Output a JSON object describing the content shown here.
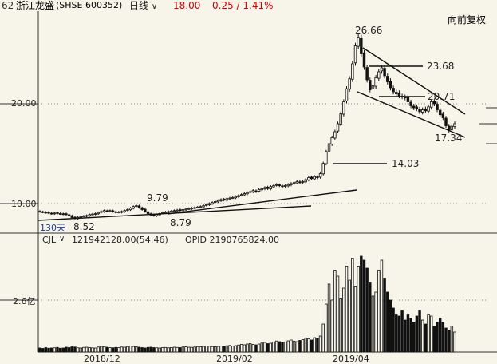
{
  "header": {
    "prefix": "62",
    "stock_name": "浙江龙盛",
    "stock_code": "(SHSE 600352)",
    "period_label": "日线",
    "price": "18.00",
    "change": "0.25 / 1.41%",
    "adjust_label": "向前复权",
    "price_color": "#d00000"
  },
  "price_axis": {
    "tick_20": "20.00",
    "tick_10": "10.00"
  },
  "annotations": {
    "high_26": "26.66",
    "level_23": "23.68",
    "level_20": "20.71",
    "low_17": "17.34",
    "level_14": "14.03",
    "mark_979": "9.79",
    "mark_879": "8.79",
    "mark_852": "8.52",
    "days_label": "130天"
  },
  "volume_panel": {
    "indicator": "CJL",
    "indicator_value": "121942128.00(54:46)",
    "opid": "OPID 2190765824.00",
    "axis_tick": "2.6亿"
  },
  "date_axis": {
    "d1": "2018/12",
    "d2": "2019/02",
    "d3": "2019/04"
  },
  "chart_data": {
    "type": "candlestick",
    "ylim": [
      8.0,
      28.0
    ],
    "price_labels": [
      26.66,
      23.68,
      20.71,
      17.34,
      14.03,
      9.79,
      8.79,
      8.52
    ],
    "closes": [
      9.2,
      9.15,
      9.1,
      9.05,
      9.0,
      9.05,
      9.02,
      9.0,
      8.95,
      8.9,
      8.8,
      8.6,
      8.52,
      8.62,
      8.7,
      8.75,
      8.8,
      8.9,
      8.95,
      9.0,
      9.1,
      9.2,
      9.3,
      9.25,
      9.3,
      9.2,
      9.1,
      9.15,
      9.2,
      9.3,
      9.4,
      9.55,
      9.7,
      9.79,
      9.6,
      9.4,
      9.2,
      9.0,
      8.85,
      8.79,
      8.9,
      9.0,
      9.1,
      9.15,
      9.2,
      9.25,
      9.3,
      9.35,
      9.3,
      9.4,
      9.45,
      9.5,
      9.55,
      9.6,
      9.65,
      9.7,
      9.8,
      9.9,
      10.0,
      10.1,
      10.2,
      10.3,
      10.4,
      10.35,
      10.5,
      10.55,
      10.6,
      10.7,
      10.8,
      10.9,
      11.0,
      11.1,
      11.2,
      11.3,
      11.2,
      11.4,
      11.5,
      11.6,
      11.5,
      11.7,
      11.8,
      11.9,
      11.8,
      11.7,
      11.8,
      11.9,
      12.0,
      12.1,
      12.2,
      12.1,
      12.2,
      12.4,
      12.6,
      12.5,
      12.7,
      12.6,
      13.0,
      14.03,
      15.2,
      16.0,
      16.6,
      17.2,
      18.0,
      19.0,
      20.2,
      21.5,
      22.5,
      24.0,
      25.8,
      26.66,
      25.0,
      23.68,
      22.4,
      21.4,
      21.8,
      22.6,
      23.2,
      23.6,
      22.8,
      22.2,
      21.6,
      21.2,
      21.0,
      20.8,
      20.71,
      20.6,
      20.2,
      19.8,
      19.6,
      19.5,
      19.2,
      19.4,
      19.3,
      19.7,
      20.2,
      20.0,
      19.4,
      18.9,
      18.6,
      17.8,
      17.34,
      17.75,
      18.0
    ],
    "volumes": [
      0.2,
      0.18,
      0.22,
      0.19,
      0.2,
      0.21,
      0.23,
      0.19,
      0.2,
      0.24,
      0.22,
      0.26,
      0.25,
      0.21,
      0.2,
      0.23,
      0.24,
      0.22,
      0.21,
      0.2,
      0.25,
      0.28,
      0.26,
      0.24,
      0.22,
      0.21,
      0.23,
      0.22,
      0.25,
      0.24,
      0.27,
      0.3,
      0.28,
      0.26,
      0.24,
      0.22,
      0.2,
      0.23,
      0.24,
      0.22,
      0.21,
      0.2,
      0.22,
      0.23,
      0.21,
      0.22,
      0.24,
      0.23,
      0.22,
      0.25,
      0.26,
      0.24,
      0.23,
      0.25,
      0.27,
      0.26,
      0.28,
      0.3,
      0.29,
      0.27,
      0.26,
      0.28,
      0.3,
      0.29,
      0.31,
      0.33,
      0.3,
      0.32,
      0.35,
      0.38,
      0.36,
      0.4,
      0.42,
      0.38,
      0.36,
      0.4,
      0.45,
      0.48,
      0.42,
      0.44,
      0.5,
      0.55,
      0.52,
      0.48,
      0.5,
      0.56,
      0.6,
      0.54,
      0.52,
      0.58,
      0.62,
      0.7,
      0.66,
      0.6,
      0.72,
      0.68,
      0.8,
      1.4,
      2.4,
      3.4,
      2.6,
      4.1,
      3.8,
      2.7,
      3.2,
      4.3,
      3.6,
      4.7,
      3.3,
      4.3,
      4.8,
      4.6,
      4.2,
      3.5,
      2.8,
      3.0,
      4.1,
      4.6,
      3.7,
      3.0,
      2.6,
      2.2,
      1.9,
      1.8,
      2.1,
      1.6,
      1.9,
      1.7,
      1.5,
      1.8,
      2.1,
      1.6,
      1.4,
      1.9,
      1.8,
      1.3,
      1.5,
      1.7,
      1.5,
      1.2,
      1.1,
      1.3,
      1.0
    ],
    "vol_axis_tick": 2.6
  }
}
